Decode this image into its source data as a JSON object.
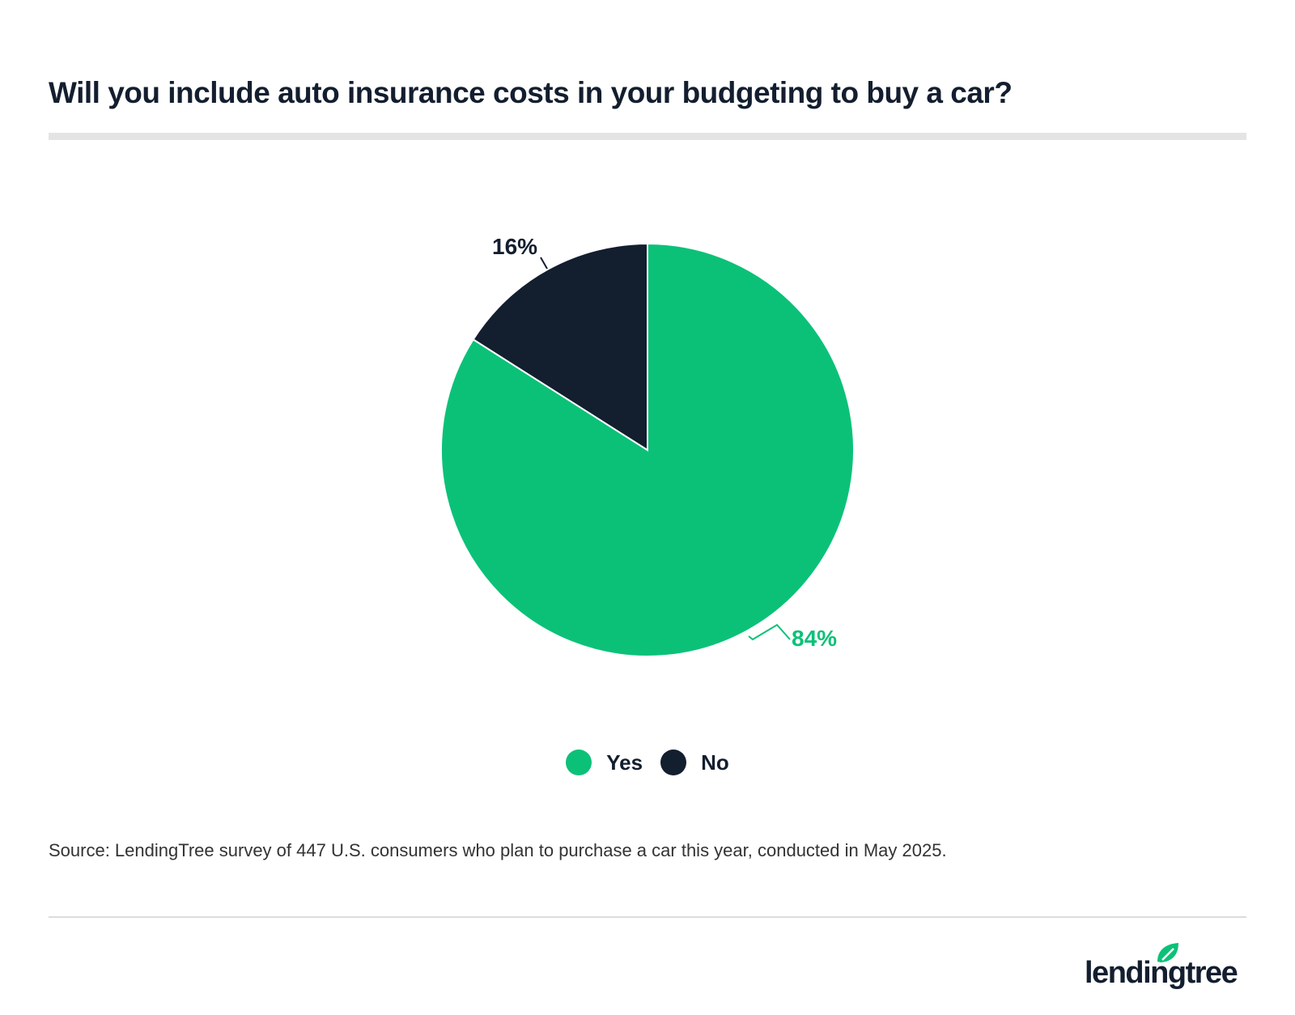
{
  "title": "Will you include auto insurance costs in your budgeting to buy a car?",
  "source": "Source: LendingTree survey of 447 U.S. consumers who plan to purchase a car this year, conducted in May 2025.",
  "logo": "lendingtree",
  "chart_data": {
    "type": "pie",
    "slices": [
      {
        "name": "Yes",
        "value": 84,
        "label": "84%",
        "color": "#0bc178"
      },
      {
        "name": "No",
        "value": 16,
        "label": "16%",
        "color": "#131e2f"
      }
    ],
    "start": "12 o'clock, clockwise",
    "legend": "bottom"
  }
}
